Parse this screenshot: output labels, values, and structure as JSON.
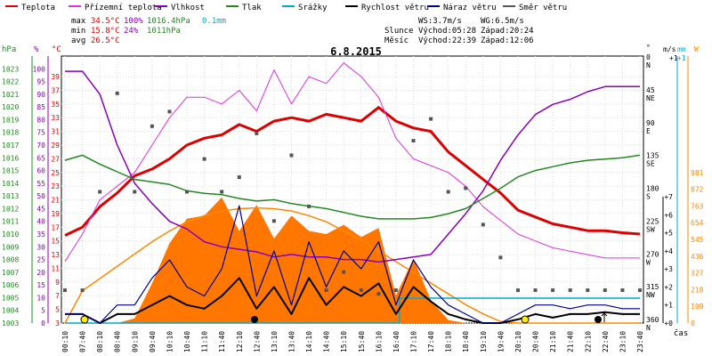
{
  "legend": [
    {
      "label": "Teplota",
      "color": "#dd0000"
    },
    {
      "label": "Přízemní teplota",
      "color": "#dd33dd"
    },
    {
      "label": "Vlhkost",
      "color": "#8800bb"
    },
    {
      "label": "Tlak",
      "color": "#228822"
    },
    {
      "label": "Srážky",
      "color": "#00aacc"
    },
    {
      "label": "Rychlost větru",
      "color": "#000000"
    },
    {
      "label": "Náraz větru",
      "color": "#000088"
    },
    {
      "label": "Směr větru",
      "color": "#555555"
    }
  ],
  "stats": {
    "max_label": "max",
    "max_temp": "34.5°C",
    "max_hum": "100%",
    "max_press": "1016.4hPa",
    "max_rain": "0.1mm",
    "min_label": "min",
    "min_temp": "15.8°C",
    "min_hum": "24%",
    "min_press": "1011hPa",
    "avg_label": "avg",
    "avg_temp": "26.5°C"
  },
  "wind_info": {
    "ws": "WS:3.7m/s",
    "wg": "WG:6.5m/s"
  },
  "sun_moon": {
    "sun_label": "Slunce",
    "sun_rise": "Východ:05:28",
    "sun_set": "Západ:20:24",
    "moon_label": "Měsíc",
    "moon_rise": "Východ:22:39",
    "moon_set": "Západ:12:06"
  },
  "colors": {
    "temp": "#dd0000",
    "ground_temp": "#dd33dd",
    "humidity": "#8800bb",
    "pressure": "#228822",
    "rain": "#00aacc",
    "wind": "#000000",
    "gust": "#000088",
    "direction": "#555555",
    "solar": "#ff8800"
  },
  "chart_data": {
    "type": "line",
    "title": "6.8.2015",
    "xlabel": "čas",
    "x_ticks": [
      "00:10",
      "07:40",
      "08:10",
      "08:40",
      "09:10",
      "09:40",
      "10:10",
      "10:40",
      "11:10",
      "11:40",
      "12:10",
      "12:40",
      "13:10",
      "13:40",
      "14:10",
      "14:40",
      "15:10",
      "15:40",
      "16:10",
      "16:40",
      "17:10",
      "17:40",
      "18:10",
      "18:40",
      "19:10",
      "19:40",
      "20:10",
      "20:40",
      "21:10",
      "21:40",
      "22:10",
      "22:40",
      "23:10",
      "23:40"
    ],
    "axes": {
      "pressure": {
        "unit": "hPa",
        "ylim": [
          1003,
          1024
        ],
        "ticks": [
          1003,
          1004,
          1005,
          1006,
          1007,
          1008,
          1009,
          1010,
          1011,
          1012,
          1013,
          1014,
          1015,
          1016,
          1017,
          1018,
          1019,
          1020,
          1021,
          1022,
          1023
        ]
      },
      "humidity": {
        "unit": "%",
        "ylim": [
          0,
          105
        ],
        "ticks": [
          0,
          5,
          10,
          15,
          20,
          25,
          30,
          35,
          40,
          45,
          50,
          55,
          60,
          65,
          70,
          75,
          80,
          85,
          90,
          95,
          100
        ]
      },
      "temperature": {
        "unit": "°C",
        "ylim": [
          3,
          42
        ],
        "ticks": [
          3,
          5,
          7,
          9,
          11,
          13,
          15,
          17,
          19,
          21,
          23,
          25,
          27,
          29,
          31,
          33,
          35,
          37,
          39
        ]
      },
      "wind_direction": {
        "unit": "°",
        "ticks": [
          {
            "v": 0,
            "l": "N"
          },
          {
            "v": 45,
            "l": "NE"
          },
          {
            "v": 90,
            "l": "E"
          },
          {
            "v": 135,
            "l": "SE"
          },
          {
            "v": 180,
            "l": "S"
          },
          {
            "v": 225,
            "l": "SW"
          },
          {
            "v": 270,
            "l": "W"
          },
          {
            "v": 315,
            "l": "NW"
          },
          {
            "v": 360,
            "l": "N"
          }
        ]
      },
      "wind_speed": {
        "unit": "m/s",
        "ticks": [
          0,
          1,
          2,
          3,
          4,
          5,
          6,
          7
        ],
        "top_tick": "+1"
      },
      "rain": {
        "unit": "mm",
        "top_tick": "+1"
      },
      "solar": {
        "unit": "W",
        "ticks": [
          0,
          109,
          218,
          327,
          436,
          545,
          654,
          763,
          872,
          981
        ]
      }
    },
    "series": [
      {
        "name": "Teplota",
        "axis": "temperature",
        "color": "#dd0000",
        "x": [
          0,
          1,
          2,
          3,
          4,
          5,
          6,
          7,
          8,
          9,
          10,
          11,
          12,
          13,
          14,
          15,
          16,
          17,
          18,
          19,
          20,
          21,
          22,
          23,
          24,
          25,
          26,
          27,
          28,
          29,
          30,
          31,
          32,
          33
        ],
        "y": [
          15.8,
          17,
          20,
          22,
          24.5,
          25.5,
          27,
          29,
          30,
          30.5,
          32,
          31,
          32.5,
          33,
          32.5,
          33.5,
          33,
          32.5,
          34.5,
          32.5,
          31.5,
          31,
          28,
          26,
          24,
          22,
          19.5,
          18.5,
          17.5,
          17,
          16.5,
          16.5,
          16.2,
          16
        ]
      },
      {
        "name": "Přízemní teplota",
        "axis": "temperature",
        "color": "#dd33dd",
        "x": [
          0,
          1,
          2,
          3,
          4,
          5,
          6,
          7,
          8,
          9,
          10,
          11,
          12,
          13,
          14,
          15,
          16,
          17,
          18,
          19,
          20,
          21,
          22,
          23,
          24,
          25,
          26,
          27,
          28,
          29,
          30,
          31,
          32,
          33
        ],
        "y": [
          12,
          16,
          21,
          23,
          25,
          29,
          33,
          36,
          36,
          35,
          37,
          34,
          40,
          35,
          39,
          38,
          41,
          39,
          36,
          30,
          27,
          26,
          25,
          23,
          20,
          18,
          16,
          15,
          14,
          13.5,
          13,
          12.5,
          12.5,
          12.5
        ]
      },
      {
        "name": "Vlhkost",
        "axis": "humidity",
        "color": "#8800bb",
        "x": [
          0,
          1,
          2,
          3,
          4,
          5,
          6,
          7,
          8,
          9,
          10,
          11,
          12,
          13,
          14,
          15,
          16,
          17,
          18,
          19,
          20,
          21,
          22,
          23,
          24,
          25,
          26,
          27,
          28,
          29,
          30,
          31,
          32,
          33
        ],
        "y": [
          99,
          99,
          90,
          70,
          55,
          47,
          40,
          37,
          32,
          30,
          29,
          28,
          26,
          27,
          26,
          26,
          25,
          25,
          24,
          25,
          26,
          27,
          35,
          43,
          52,
          64,
          74,
          82,
          86,
          88,
          91,
          93,
          93,
          93
        ]
      },
      {
        "name": "Tlak",
        "axis": "pressure",
        "color": "#228822",
        "x": [
          0,
          1,
          2,
          3,
          4,
          5,
          6,
          7,
          8,
          9,
          10,
          11,
          12,
          13,
          14,
          15,
          16,
          17,
          18,
          19,
          20,
          21,
          22,
          23,
          24,
          25,
          26,
          27,
          28,
          29,
          30,
          31,
          32,
          33
        ],
        "y": [
          1015.8,
          1016.2,
          1015.5,
          1014.9,
          1014.3,
          1014.1,
          1013.9,
          1013.4,
          1013.2,
          1013.1,
          1012.8,
          1012.6,
          1012.7,
          1012.4,
          1012.2,
          1012,
          1011.7,
          1011.4,
          1011.2,
          1011.2,
          1011.2,
          1011.3,
          1011.6,
          1012,
          1012.8,
          1013.6,
          1014.5,
          1015,
          1015.3,
          1015.6,
          1015.8,
          1015.9,
          1016,
          1016.2
        ]
      },
      {
        "name": "Srážky",
        "axis": "rain",
        "color": "#00aacc",
        "x": [
          0,
          19.2,
          19.2,
          33
        ],
        "y": [
          0,
          0,
          0.1,
          0.1
        ]
      },
      {
        "name": "Rychlost větru",
        "axis": "wind_speed",
        "color": "#000000",
        "x": [
          0,
          1,
          2,
          3,
          4,
          5,
          6,
          7,
          8,
          9,
          10,
          11,
          12,
          13,
          14,
          15,
          16,
          17,
          18,
          19,
          20,
          21,
          22,
          23,
          24,
          25,
          26,
          27,
          28,
          29,
          30,
          31,
          32,
          33
        ],
        "y": [
          0.5,
          0.5,
          0,
          0.5,
          0.5,
          1,
          1.5,
          1,
          0.8,
          1.5,
          2.5,
          0.8,
          2,
          0.5,
          2.5,
          1,
          2,
          1.5,
          2.2,
          0.5,
          2,
          1.2,
          0.5,
          0.2,
          0,
          0,
          0.2,
          0.5,
          0.3,
          0.5,
          0.5,
          0.6,
          0.5,
          0.5
        ]
      },
      {
        "name": "Náraz větru",
        "axis": "wind_speed",
        "color": "#000088",
        "x": [
          0,
          1,
          2,
          3,
          4,
          5,
          6,
          7,
          8,
          9,
          10,
          11,
          12,
          13,
          14,
          15,
          16,
          17,
          18,
          19,
          20,
          21,
          22,
          23,
          24,
          25,
          26,
          27,
          28,
          29,
          30,
          31,
          32,
          33
        ],
        "y": [
          0.5,
          0.5,
          0,
          1,
          1,
          2.5,
          3.5,
          2,
          1.5,
          3,
          6.5,
          1.5,
          4,
          1,
          4.5,
          2,
          4,
          3,
          4.5,
          1,
          3.5,
          2,
          1,
          0.5,
          0,
          0,
          0.5,
          1,
          1,
          0.8,
          1,
          1,
          0.8,
          0.8
        ]
      },
      {
        "name": "Směr větru",
        "axis": "wind_direction",
        "color": "#555555",
        "x": [
          0,
          1,
          2,
          3,
          4,
          5,
          6,
          7,
          8,
          9,
          10,
          11,
          12,
          13,
          14,
          15,
          16,
          17,
          18,
          19,
          20,
          21,
          22,
          23,
          24,
          25,
          26,
          27,
          28,
          29,
          30,
          31,
          32,
          33
        ],
        "y": [
          315,
          315,
          180,
          45,
          180,
          90,
          70,
          180,
          135,
          180,
          160,
          100,
          220,
          130,
          200,
          315,
          290,
          315,
          320,
          315,
          110,
          80,
          180,
          175,
          225,
          270,
          315,
          315,
          315,
          315,
          315,
          315,
          315,
          315
        ]
      }
    ],
    "solar_radiation": {
      "axis": "solar",
      "color": "#ff8800",
      "fill": "#ff7700",
      "x": [
        0,
        1,
        2,
        3,
        4,
        5,
        6,
        7,
        8,
        9,
        10,
        11,
        12,
        13,
        14,
        15,
        16,
        17,
        18,
        19,
        20,
        21,
        22,
        23,
        24,
        25,
        26,
        27,
        28,
        29,
        30,
        31,
        32,
        33
      ],
      "y": [
        0,
        0,
        0,
        0,
        30,
        260,
        520,
        680,
        700,
        820,
        600,
        770,
        550,
        700,
        600,
        580,
        640,
        560,
        620,
        180,
        420,
        150,
        20,
        0,
        0,
        0,
        0,
        0,
        0,
        0,
        0,
        0,
        0,
        0
      ],
      "theoretical": [
        0,
        210,
        290,
        370,
        450,
        530,
        600,
        660,
        700,
        730,
        745,
        750,
        745,
        730,
        700,
        660,
        600,
        540,
        470,
        400,
        330,
        260,
        190,
        120,
        60,
        10,
        0,
        0,
        0,
        0,
        0,
        0,
        0,
        0
      ]
    }
  }
}
